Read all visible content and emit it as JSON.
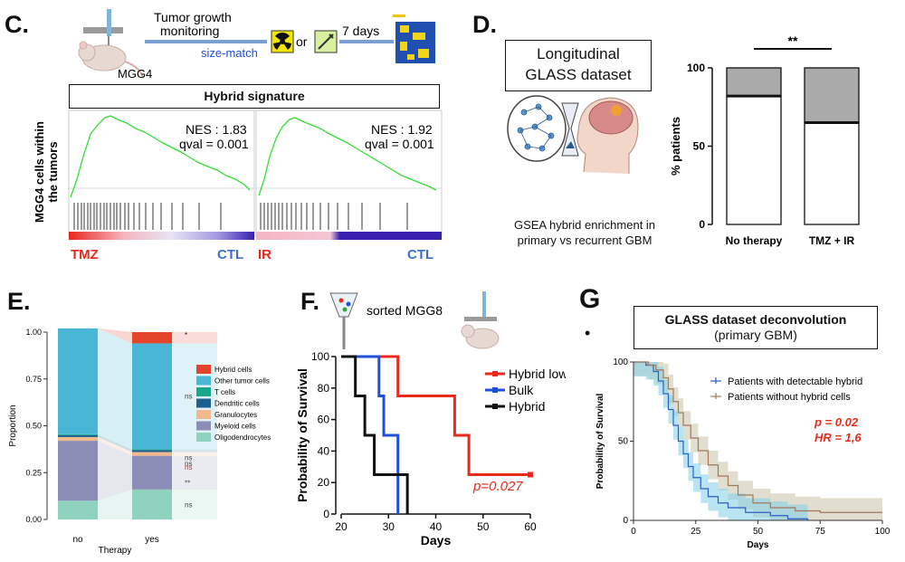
{
  "panel_c": {
    "label": "C.",
    "model": "MGG4",
    "step1": "Tumor growth",
    "step1b": "monitoring",
    "size_match": "size-match",
    "or": "or",
    "days": "7 days",
    "signature_title": "Hybrid signature",
    "ylabel_1": "MGG4 cells within",
    "ylabel_2": "the tumors",
    "left": {
      "nes": "NES : 1.83",
      "qval": "qval = 0.001",
      "treat": "TMZ",
      "ctl": "CTL"
    },
    "right": {
      "nes": "NES : 1.92",
      "qval": "qval = 0.001",
      "treat": "IR",
      "ctl": "CTL"
    }
  },
  "panel_d": {
    "label": "D.",
    "box_line1": "Longitudinal",
    "box_line2": "GLASS dataset",
    "caption1": "GSEA hybrid enrichment in",
    "caption2": "primary vs recurrent GBM",
    "significance": "**"
  },
  "panel_e": {
    "label": "E."
  },
  "panel_f": {
    "label": "F.",
    "sorted": "sorted MGG8"
  },
  "panel_g": {
    "label": "G",
    "bullet": "•",
    "box_title": "GLASS dataset deconvolution",
    "box_subtitle": "(primary GBM)"
  },
  "colors": {
    "red": "#e8291c",
    "blue": "#1f4fdb",
    "green": "#33dd33",
    "bar_gray": "#aaaaaa"
  },
  "chart_data": [
    {
      "id": "d",
      "type": "bar",
      "stacked": true,
      "categories": [
        "No therapy",
        "TMZ + IR"
      ],
      "series": [
        {
          "name": "lower",
          "values": [
            82,
            65
          ],
          "color": "#ffffff"
        },
        {
          "name": "upper",
          "values": [
            18,
            35
          ],
          "color": "#aaaaaa"
        }
      ],
      "ylabel": "% patients",
      "yticks": [
        "0",
        "50",
        "100"
      ],
      "ylim": [
        0,
        100
      ]
    },
    {
      "id": "e",
      "type": "bar",
      "stacked": true,
      "categories": [
        "no",
        "yes"
      ],
      "xlabel": "Therapy",
      "ylabel": "Proportion",
      "yticks": [
        "0.00",
        "0.25",
        "0.50",
        "0.75",
        "1.00"
      ],
      "ylim": [
        0,
        1
      ],
      "series": [
        {
          "name": "Oligodendrocytes",
          "color": "#8fd3bf",
          "values": [
            0.1,
            0.16
          ]
        },
        {
          "name": "Myeloid cells",
          "color": "#8b8fb8",
          "values": [
            0.32,
            0.18
          ]
        },
        {
          "name": "Granulocytes",
          "color": "#f2b98d",
          "values": [
            0.02,
            0.02
          ]
        },
        {
          "name": "Dendritic cells",
          "color": "#1b5f8f",
          "values": [
            0.01,
            0.01
          ]
        },
        {
          "name": "T cells",
          "color": "#18a68d",
          "values": [
            0.005,
            0.005
          ]
        },
        {
          "name": "Other tumor cells",
          "color": "#49b6d6",
          "values": [
            0.565,
            0.565
          ]
        },
        {
          "name": "Hybrid cells",
          "color": "#e4442c",
          "values": [
            0.0,
            0.06
          ]
        }
      ],
      "significance": [
        "*",
        "ns",
        "ns",
        "ns",
        "ns",
        "**",
        "ns"
      ]
    },
    {
      "id": "f",
      "type": "line",
      "style": "step",
      "xlabel": "Days",
      "ylabel": "Probability of Survival",
      "xlim": [
        20,
        60
      ],
      "ylim": [
        0,
        100
      ],
      "xticks": [
        "20",
        "30",
        "40",
        "50",
        "60"
      ],
      "yticks": [
        "0",
        "20",
        "40",
        "60",
        "80",
        "100"
      ],
      "annotation": "p=0.027",
      "series": [
        {
          "name": "Hybrid low",
          "color": "#e8291c",
          "x": [
            20,
            32,
            32,
            44,
            44,
            47,
            47,
            60
          ],
          "y": [
            100,
            100,
            75,
            75,
            50,
            50,
            25,
            25
          ]
        },
        {
          "name": "Bulk",
          "color": "#1f4fdb",
          "x": [
            20,
            28,
            28,
            29,
            29,
            32,
            32
          ],
          "y": [
            100,
            100,
            75,
            75,
            50,
            50,
            0
          ]
        },
        {
          "name": "Hybrid",
          "color": "#111111",
          "x": [
            20,
            23,
            23,
            25,
            25,
            27,
            27,
            32,
            32,
            34,
            34
          ],
          "y": [
            100,
            100,
            75,
            75,
            50,
            50,
            25,
            25,
            25,
            25,
            0
          ]
        }
      ]
    },
    {
      "id": "g",
      "type": "line",
      "style": "step",
      "xlabel": "Days",
      "ylabel": "Probability of Survival",
      "xlim": [
        0,
        100
      ],
      "ylim": [
        0,
        100
      ],
      "xticks": [
        "0",
        "25",
        "50",
        "75",
        "100"
      ],
      "yticks": [
        "0",
        "50",
        "100"
      ],
      "annotation1": "p = 0.02",
      "annotation2": "HR = 1,6",
      "series": [
        {
          "name": "Patients with detectable hybrid",
          "color": "#2a5fc4",
          "band": "#7fd0ea",
          "x": [
            0,
            5,
            8,
            10,
            12,
            14,
            16,
            18,
            20,
            22,
            24,
            27,
            30,
            34,
            38,
            45,
            55,
            62,
            70
          ],
          "y": [
            100,
            98,
            94,
            88,
            80,
            70,
            60,
            50,
            42,
            34,
            27,
            20,
            15,
            11,
            8,
            5,
            3,
            1,
            0
          ]
        },
        {
          "name": "Patients without hybrid cells",
          "color": "#a0785a",
          "band": "#c8c3a8",
          "x": [
            0,
            6,
            9,
            12,
            14,
            16,
            18,
            20,
            23,
            26,
            30,
            34,
            38,
            42,
            48,
            55,
            65,
            75,
            100
          ],
          "y": [
            100,
            98,
            95,
            90,
            83,
            75,
            68,
            60,
            52,
            44,
            35,
            28,
            22,
            16,
            11,
            8,
            6,
            5,
            5
          ]
        }
      ]
    }
  ]
}
